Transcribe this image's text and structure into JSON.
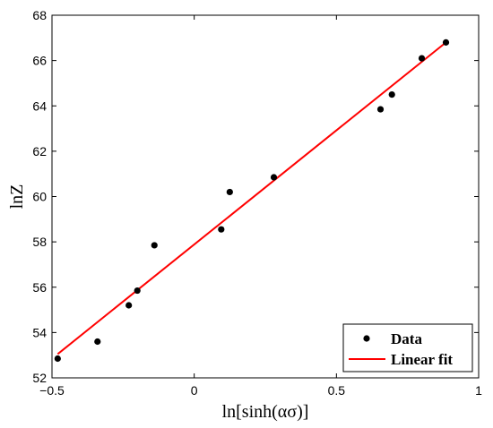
{
  "chart_data": {
    "type": "scatter",
    "xlabel": "ln[sinh(ασ)]",
    "ylabel": "lnZ",
    "xlim": [
      -0.5,
      1
    ],
    "ylim": [
      52,
      68
    ],
    "x_ticks": [
      "−0.5",
      "0",
      "0.5",
      "1"
    ],
    "x_tick_values": [
      -0.5,
      0,
      0.5,
      1
    ],
    "y_ticks": [
      "52",
      "54",
      "56",
      "58",
      "60",
      "62",
      "64",
      "66",
      "68"
    ],
    "y_tick_values": [
      52,
      54,
      56,
      58,
      60,
      62,
      64,
      66,
      68
    ],
    "grid": false,
    "legend_position": "bottom-right",
    "series": [
      {
        "name": "Data",
        "kind": "scatter",
        "color": "#000000",
        "points": [
          [
            -0.48,
            52.85
          ],
          [
            -0.34,
            53.6
          ],
          [
            -0.23,
            55.2
          ],
          [
            -0.2,
            55.85
          ],
          [
            -0.14,
            57.85
          ],
          [
            0.095,
            58.55
          ],
          [
            0.125,
            60.2
          ],
          [
            0.28,
            60.85
          ],
          [
            0.655,
            63.85
          ],
          [
            0.695,
            64.5
          ],
          [
            0.8,
            66.1
          ],
          [
            0.885,
            66.8
          ]
        ]
      },
      {
        "name": "Linear fit",
        "kind": "line",
        "color": "#ff0000",
        "points": [
          [
            -0.48,
            53.05
          ],
          [
            0.885,
            66.8
          ]
        ]
      }
    ]
  }
}
